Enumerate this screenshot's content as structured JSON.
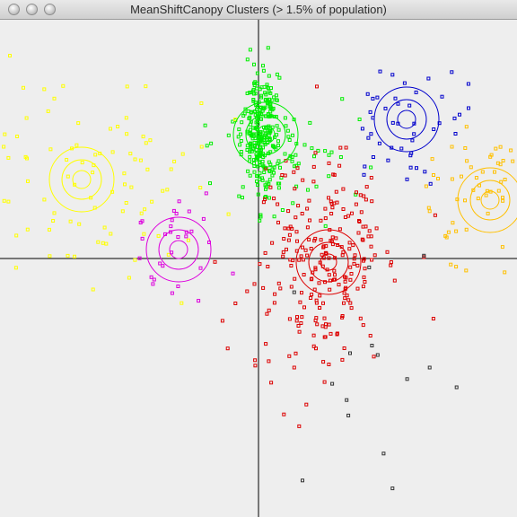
{
  "window": {
    "title": "MeanShiftCanopy Clusters (> 1.5% of population)",
    "buttons": [
      "close",
      "minimize",
      "zoom"
    ]
  },
  "plot": {
    "background": "#eeeeee",
    "axis_color": "#000000",
    "clusters": [
      {
        "name": "green",
        "color": "#00ee00"
      },
      {
        "name": "red",
        "color": "#dd0000"
      },
      {
        "name": "blue",
        "color": "#0000cc"
      },
      {
        "name": "yellow",
        "color": "#ffff00"
      },
      {
        "name": "orange",
        "color": "#ffc000"
      },
      {
        "name": "magenta",
        "color": "#dd00dd"
      },
      {
        "name": "black",
        "color": "#333333"
      }
    ]
  }
}
